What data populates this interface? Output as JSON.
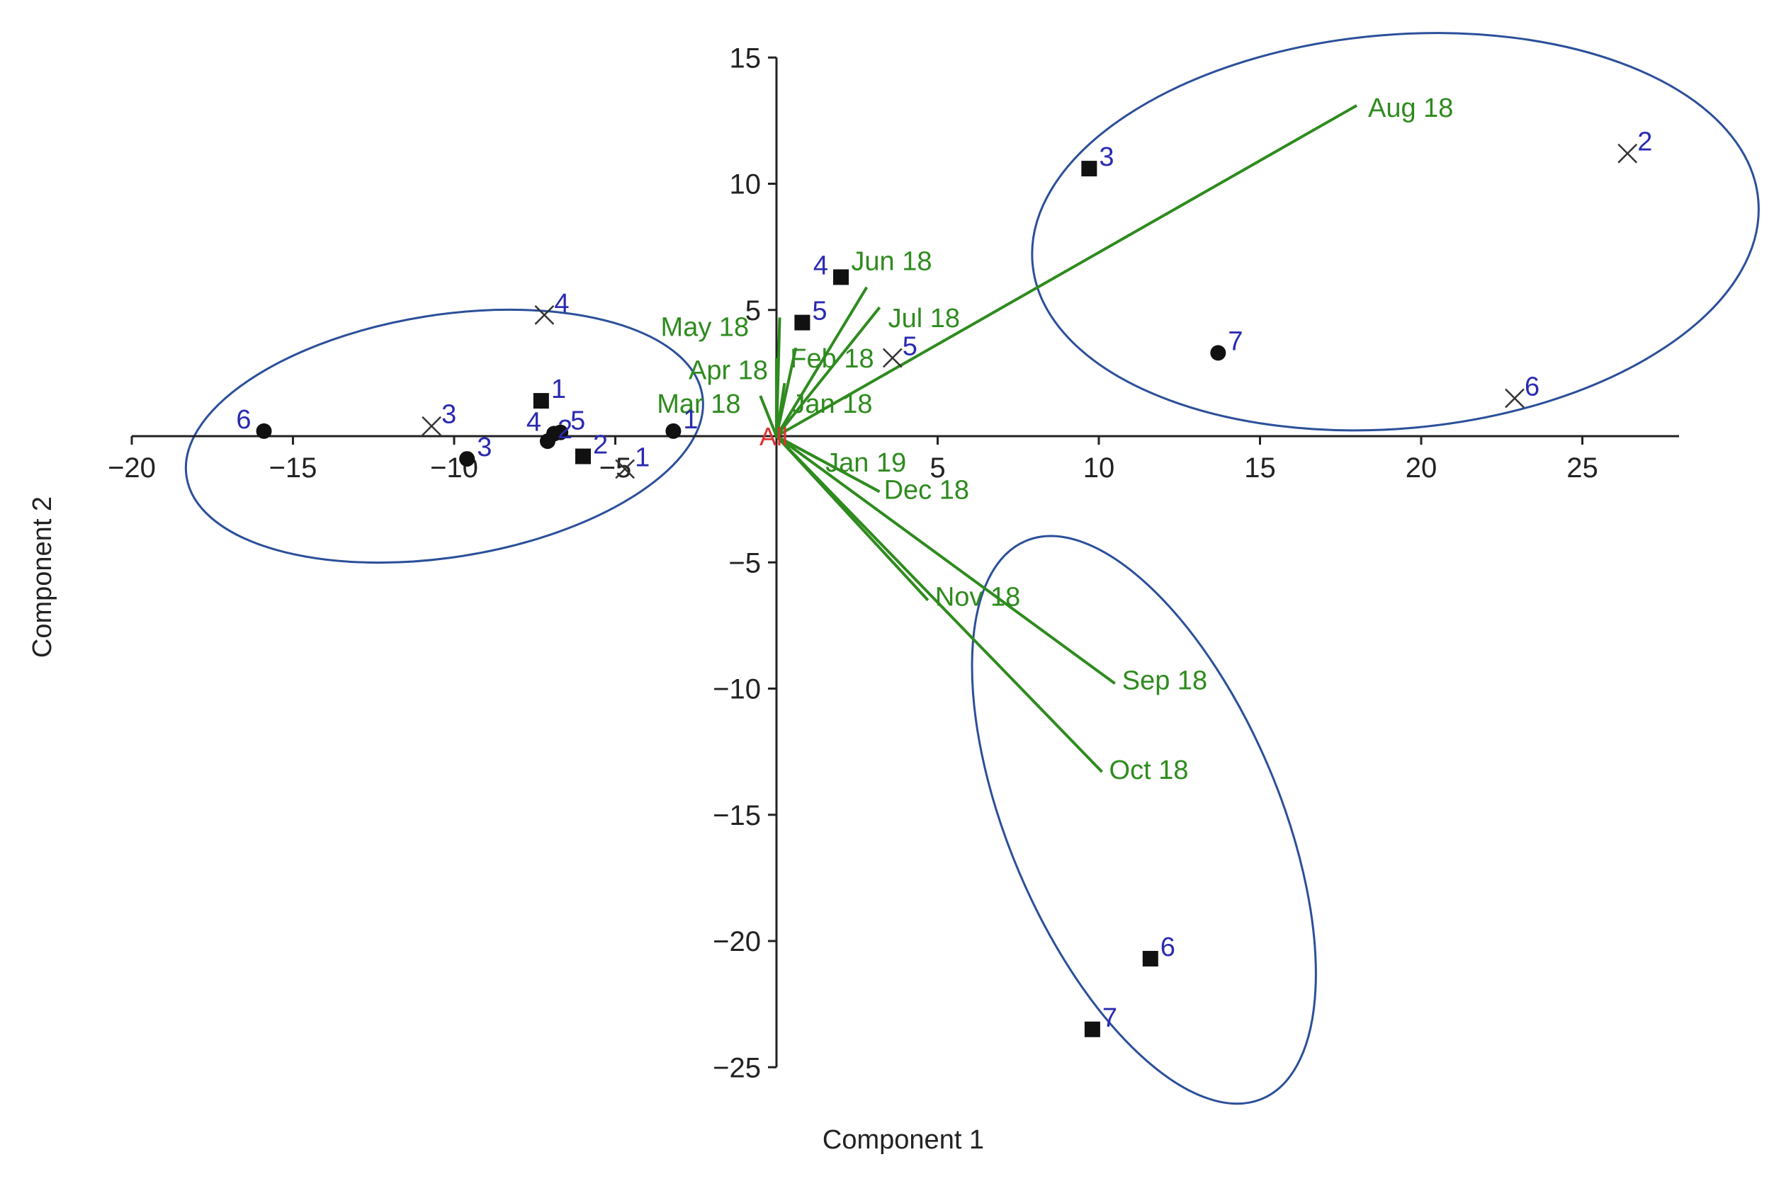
{
  "chart_data": {
    "type": "scatter",
    "xlabel": "Component 1",
    "ylabel": "Component 2",
    "xlim": [
      -20,
      28
    ],
    "ylim": [
      -25,
      15
    ],
    "x_ticks": [
      -20,
      -15,
      -10,
      -5,
      5,
      10,
      15,
      20,
      25
    ],
    "x_tick_labels": [
      "−20",
      "−15",
      "−10",
      "−5",
      "5",
      "10",
      "15",
      "20",
      "25"
    ],
    "y_ticks": [
      15,
      10,
      5,
      -5,
      -10,
      -15,
      -20,
      -25
    ],
    "y_tick_labels": [
      "15",
      "10",
      "5",
      "−5",
      "−10",
      "−15",
      "−20",
      "−25"
    ],
    "grid": false,
    "origin_label": "All",
    "colors": {
      "vector": "#2e8b1e",
      "point_label": "#2a2ab0",
      "ellipse": "#2b4f9a",
      "marker": "#111111",
      "origin": "#e03030"
    },
    "vectors": [
      {
        "label": "Aug 18",
        "x": 18.0,
        "y": 13.1
      },
      {
        "label": "Jun 18",
        "x": 2.8,
        "y": 5.9
      },
      {
        "label": "Jul 18",
        "x": 3.2,
        "y": 5.1
      },
      {
        "label": "May 18",
        "x": 0.1,
        "y": 4.7
      },
      {
        "label": "Feb 18",
        "x": 0.6,
        "y": 3.5
      },
      {
        "label": "Apr 18",
        "x": 0.0,
        "y": 3.1
      },
      {
        "label": "Jan 18",
        "x": 0.25,
        "y": 2.1
      },
      {
        "label": "Mar 18",
        "x": -0.5,
        "y": 1.6
      },
      {
        "label": "Jan 19",
        "x": 1.3,
        "y": -0.9
      },
      {
        "label": "Dec 18",
        "x": 3.2,
        "y": -2.2
      },
      {
        "label": "Nov 18",
        "x": 4.7,
        "y": -6.5
      },
      {
        "label": "Sep 18",
        "x": 10.5,
        "y": -9.8
      },
      {
        "label": "Oct 18",
        "x": 10.1,
        "y": -13.3
      }
    ],
    "series": [
      {
        "marker": "square",
        "points": [
          {
            "label": "1",
            "x": -7.3,
            "y": 1.4
          },
          {
            "label": "2",
            "x": -6.0,
            "y": -0.8
          },
          {
            "label": "3",
            "x": 9.7,
            "y": 10.6
          },
          {
            "label": "4",
            "x": 2.0,
            "y": 6.3
          },
          {
            "label": "5",
            "x": 0.8,
            "y": 4.5
          },
          {
            "label": "6",
            "x": 11.6,
            "y": -20.7
          },
          {
            "label": "7",
            "x": 9.8,
            "y": -23.5
          }
        ]
      },
      {
        "marker": "cross",
        "points": [
          {
            "label": "1",
            "x": -4.7,
            "y": -1.3
          },
          {
            "label": "2",
            "x": 26.4,
            "y": 11.2
          },
          {
            "label": "3",
            "x": -10.7,
            "y": 0.4
          },
          {
            "label": "4",
            "x": -7.2,
            "y": 4.8
          },
          {
            "label": "5",
            "x": 3.6,
            "y": 3.1
          },
          {
            "label": "6",
            "x": 22.9,
            "y": 1.5
          }
        ]
      },
      {
        "marker": "circle",
        "points": [
          {
            "label": "1",
            "x": -3.2,
            "y": 0.2
          },
          {
            "label": "2",
            "x": -7.1,
            "y": -0.2
          },
          {
            "label": "3",
            "x": -9.6,
            "y": -0.9
          },
          {
            "label": "4",
            "x": -6.9,
            "y": 0.1
          },
          {
            "label": "5",
            "x": -6.7,
            "y": 0.15
          },
          {
            "label": "6",
            "x": -15.9,
            "y": 0.2
          },
          {
            "label": "7",
            "x": 13.7,
            "y": 3.3
          }
        ]
      }
    ],
    "ellipses": [
      {
        "cx": -10.3,
        "cy": 0.0,
        "rx": 8.1,
        "ry": 4.8,
        "rotation_deg": -9
      },
      {
        "cx": 19.2,
        "cy": 8.1,
        "rx": 11.3,
        "ry": 7.8,
        "rotation_deg": -5
      },
      {
        "cx": 11.4,
        "cy": -15.2,
        "rx": 4.2,
        "ry": 12.0,
        "rotation_deg": -23
      }
    ]
  }
}
